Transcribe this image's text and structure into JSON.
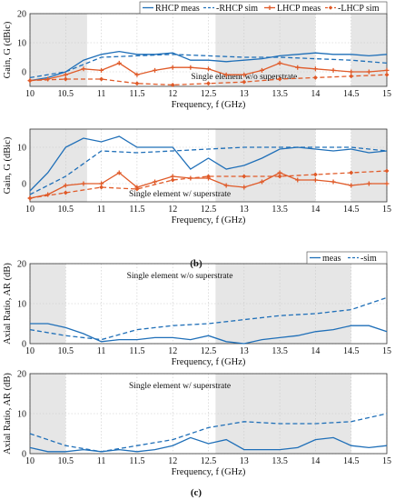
{
  "captions": {
    "b": "(b)",
    "c": "(c)"
  },
  "colors": {
    "meas": "#1f6fb8",
    "sim": "#1f6fb8",
    "lhcp": "#e05a28",
    "shade": "#e6e6e6",
    "grid": "#c8c8c8"
  },
  "chart_data": [
    {
      "type": "line",
      "annotation": "Single element w/o superstrate",
      "xlabel": "Frequency, f (GHz)",
      "ylabel": "Gain, G (dBic)",
      "xlim": [
        10,
        15
      ],
      "ylim": [
        -5,
        20
      ],
      "xticks": [
        "10",
        "10.5",
        "11",
        "11.5",
        "12",
        "12.5",
        "13",
        "13.5",
        "14",
        "14.5",
        "15"
      ],
      "yticks": [
        "20",
        "10",
        "0"
      ],
      "shaded_x": [
        [
          10,
          10.8
        ],
        [
          12.6,
          14
        ],
        [
          14.5,
          15
        ]
      ],
      "legend": {
        "position": "top-right",
        "entries": [
          "RHCP meas",
          "-RHCP sim",
          "LHCP meas",
          "-LHCP sim"
        ]
      },
      "series": [
        {
          "name": "RHCP meas",
          "color": "#1f6fb8",
          "style": "solid",
          "marker": "none",
          "x": [
            10,
            10.25,
            10.5,
            10.75,
            11,
            11.25,
            11.5,
            11.75,
            12,
            12.25,
            12.5,
            12.75,
            13,
            13.25,
            13.5,
            13.75,
            14,
            14.25,
            14.5,
            14.75,
            15
          ],
          "y": [
            -3,
            -2,
            0,
            4,
            6,
            7,
            6,
            6,
            6.5,
            4,
            4,
            3.5,
            4,
            4.5,
            5.5,
            6,
            6.5,
            6,
            6,
            5.5,
            6
          ]
        },
        {
          "name": "-RHCP sim",
          "color": "#1f6fb8",
          "style": "dashed",
          "marker": "none",
          "x": [
            10,
            10.5,
            11,
            11.5,
            12,
            12.5,
            13,
            13.5,
            14,
            14.5,
            15
          ],
          "y": [
            -2,
            0,
            5,
            5.5,
            6,
            5.5,
            5,
            5,
            4.5,
            4,
            3
          ]
        },
        {
          "name": "LHCP meas",
          "color": "#e05a28",
          "style": "solid",
          "marker": "plus",
          "x": [
            10,
            10.25,
            10.5,
            10.75,
            11,
            11.25,
            11.5,
            11.75,
            12,
            12.25,
            12.5,
            12.75,
            13,
            13.25,
            13.5,
            13.75,
            14,
            14.25,
            14.5,
            14.75,
            15
          ],
          "y": [
            -3,
            -2.5,
            -1,
            1,
            0.5,
            3,
            -1,
            0.5,
            1.5,
            1.5,
            1,
            -1,
            -1,
            0.5,
            3,
            1.5,
            1,
            0.5,
            0,
            0,
            0.5
          ]
        },
        {
          "name": "-LHCP sim",
          "color": "#e05a28",
          "style": "dashed",
          "marker": "diamond",
          "x": [
            10,
            10.5,
            11,
            11.5,
            12,
            12.5,
            13,
            13.5,
            14,
            14.5,
            15
          ],
          "y": [
            -3,
            -2.5,
            -2.5,
            -4,
            -4.5,
            -4,
            -3.5,
            -2.5,
            -2,
            -1.5,
            -1
          ]
        }
      ]
    },
    {
      "type": "line",
      "annotation": "Single element w/ superstrate",
      "xlabel": "Frequency, f (GHz)",
      "ylabel": "Gain, G (dBic)",
      "xlim": [
        10,
        15
      ],
      "ylim": [
        -5,
        15
      ],
      "xticks": [
        "10",
        "10.5",
        "11",
        "11.5",
        "12",
        "12.5",
        "13",
        "13.5",
        "14",
        "14.5",
        "15"
      ],
      "yticks": [
        "10",
        "0"
      ],
      "shaded_x": [
        [
          10,
          10.8
        ],
        [
          12.6,
          14
        ],
        [
          14.5,
          15
        ]
      ],
      "series": [
        {
          "name": "RHCP meas",
          "color": "#1f6fb8",
          "style": "solid",
          "marker": "none",
          "x": [
            10,
            10.25,
            10.5,
            10.75,
            11,
            11.25,
            11.5,
            11.75,
            12,
            12.25,
            12.5,
            12.75,
            13,
            13.25,
            13.5,
            13.75,
            14,
            14.25,
            14.5,
            14.75,
            15
          ],
          "y": [
            -2,
            3,
            10,
            12.5,
            11.5,
            13,
            10,
            10,
            10,
            4,
            7,
            4,
            5,
            7,
            9.5,
            10,
            9.5,
            9,
            9.5,
            8.5,
            9
          ]
        },
        {
          "name": "-RHCP sim",
          "color": "#1f6fb8",
          "style": "dashed",
          "marker": "none",
          "x": [
            10,
            10.5,
            11,
            11.5,
            12,
            12.5,
            13,
            13.5,
            14,
            14.5,
            15
          ],
          "y": [
            -3,
            2,
            9,
            8.5,
            9,
            9.5,
            10,
            10,
            10,
            10,
            9
          ]
        },
        {
          "name": "LHCP meas",
          "color": "#e05a28",
          "style": "solid",
          "marker": "plus",
          "x": [
            10,
            10.25,
            10.5,
            10.75,
            11,
            11.25,
            11.5,
            11.75,
            12,
            12.25,
            12.5,
            12.75,
            13,
            13.25,
            13.5,
            13.75,
            14,
            14.25,
            14.5,
            14.75,
            15
          ],
          "y": [
            -4,
            -3,
            -0.5,
            0,
            0,
            3,
            -1,
            0.5,
            2,
            1.5,
            1.5,
            -0.5,
            -1,
            0.5,
            3,
            1,
            1,
            0.5,
            -0.5,
            0,
            0
          ]
        },
        {
          "name": "-LHCP sim",
          "color": "#e05a28",
          "style": "dashed",
          "marker": "diamond",
          "x": [
            10,
            10.5,
            11,
            11.5,
            12,
            12.5,
            13,
            13.5,
            14,
            14.5,
            15
          ],
          "y": [
            -4,
            -2.5,
            -1,
            -1.5,
            1,
            2,
            2,
            2,
            2.5,
            3,
            3.5
          ]
        }
      ]
    },
    {
      "type": "line",
      "annotation": "Single element w/o superstrate",
      "xlabel": "Frequency, f (GHz)",
      "ylabel": "Axial Ratio, AR (dB)",
      "xlim": [
        10,
        15
      ],
      "ylim": [
        0,
        20
      ],
      "xticks": [
        "10",
        "10.5",
        "11",
        "11.5",
        "12",
        "12.5",
        "13",
        "13.5",
        "14",
        "14.5",
        "15"
      ],
      "yticks": [
        "20",
        "10",
        "0"
      ],
      "shaded_x": [
        [
          10,
          10.5
        ],
        [
          12.6,
          14.5
        ]
      ],
      "legend": {
        "position": "top-right",
        "entries": [
          "meas",
          "-sim"
        ]
      },
      "series": [
        {
          "name": "meas",
          "color": "#1f6fb8",
          "style": "solid",
          "marker": "none",
          "x": [
            10,
            10.25,
            10.5,
            10.75,
            11,
            11.25,
            11.5,
            11.75,
            12,
            12.25,
            12.5,
            12.75,
            13,
            13.25,
            13.5,
            13.75,
            14,
            14.25,
            14.5,
            14.75,
            15
          ],
          "y": [
            5,
            5,
            4,
            2.5,
            0.5,
            1,
            1,
            1.5,
            1.5,
            1,
            2,
            0.5,
            0,
            1,
            1.5,
            2,
            3,
            3.5,
            4.5,
            4.5,
            3
          ]
        },
        {
          "name": "-sim",
          "color": "#1f6fb8",
          "style": "dashed",
          "marker": "none",
          "x": [
            10,
            10.5,
            11,
            11.5,
            12,
            12.5,
            13,
            13.5,
            14,
            14.5,
            15
          ],
          "y": [
            3.5,
            2,
            1,
            3.5,
            4.5,
            5,
            6,
            7,
            7.5,
            8.5,
            11.5
          ]
        }
      ]
    },
    {
      "type": "line",
      "annotation": "Single element w/ superstrate",
      "xlabel": "Frequency, f (GHz)",
      "ylabel": "Axial Ratio, AR (dB)",
      "xlim": [
        10,
        15
      ],
      "ylim": [
        0,
        20
      ],
      "xticks": [
        "10",
        "10.5",
        "11",
        "11.5",
        "12",
        "12.5",
        "13",
        "13.5",
        "14",
        "14.5",
        "15"
      ],
      "yticks": [
        "20",
        "10",
        "0"
      ],
      "shaded_x": [
        [
          10,
          10.5
        ],
        [
          12.6,
          14.5
        ]
      ],
      "series": [
        {
          "name": "meas",
          "color": "#1f6fb8",
          "style": "solid",
          "marker": "none",
          "x": [
            10,
            10.25,
            10.5,
            10.75,
            11,
            11.25,
            11.5,
            11.75,
            12,
            12.25,
            12.5,
            12.75,
            13,
            13.25,
            13.5,
            13.75,
            14,
            14.25,
            14.5,
            14.75,
            15
          ],
          "y": [
            1.5,
            0.5,
            0.5,
            1,
            0.5,
            1,
            0.5,
            1,
            2,
            4,
            2.5,
            3.5,
            1,
            1,
            1,
            1.5,
            3.5,
            4,
            2,
            1.5,
            2
          ]
        },
        {
          "name": "-sim",
          "color": "#1f6fb8",
          "style": "dashed",
          "marker": "none",
          "x": [
            10,
            10.5,
            11,
            11.5,
            12,
            12.5,
            13,
            13.5,
            14,
            14.5,
            15
          ],
          "y": [
            5,
            2,
            0.5,
            2,
            3.5,
            6.5,
            8,
            7.5,
            7.5,
            8,
            10
          ]
        }
      ]
    }
  ]
}
